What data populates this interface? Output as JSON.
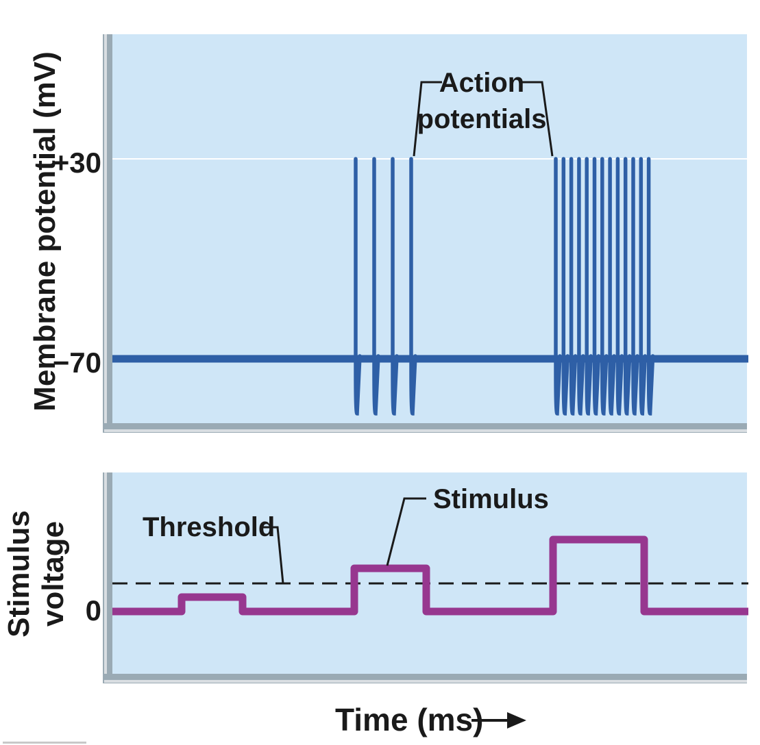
{
  "chart_data": [
    {
      "type": "line",
      "ylabel": "Membrane potential (mV)",
      "yticks": [
        {
          "value": 30,
          "label": "+30"
        },
        {
          "value": -70,
          "label": "−70"
        }
      ],
      "resting_potential": -70,
      "peak_potential": 30,
      "annotation": {
        "line1": "Action",
        "line2": "potentials"
      },
      "action_potential_bursts": [
        {
          "during_stimulus": 2,
          "count": 4
        },
        {
          "during_stimulus": 3,
          "count": 13
        }
      ],
      "colors": {
        "trace": "#2e5fa6",
        "panel": "#cfe6f7",
        "reference_line": "#ffffff"
      }
    },
    {
      "type": "line",
      "ylabel": "Stimulus voltage",
      "xlabel": "Time (ms)",
      "yticks": [
        {
          "value": 0,
          "label": "0"
        }
      ],
      "threshold": {
        "label": "Threshold",
        "style": "dashed"
      },
      "stimulus_label": "Stimulus",
      "stimuli": [
        {
          "order": 1,
          "level": "below threshold"
        },
        {
          "order": 2,
          "level": "slightly above threshold"
        },
        {
          "order": 3,
          "level": "well above threshold"
        }
      ],
      "colors": {
        "trace": "#97378f",
        "panel": "#cfe6f7",
        "threshold": "#1a1a1a"
      }
    }
  ]
}
